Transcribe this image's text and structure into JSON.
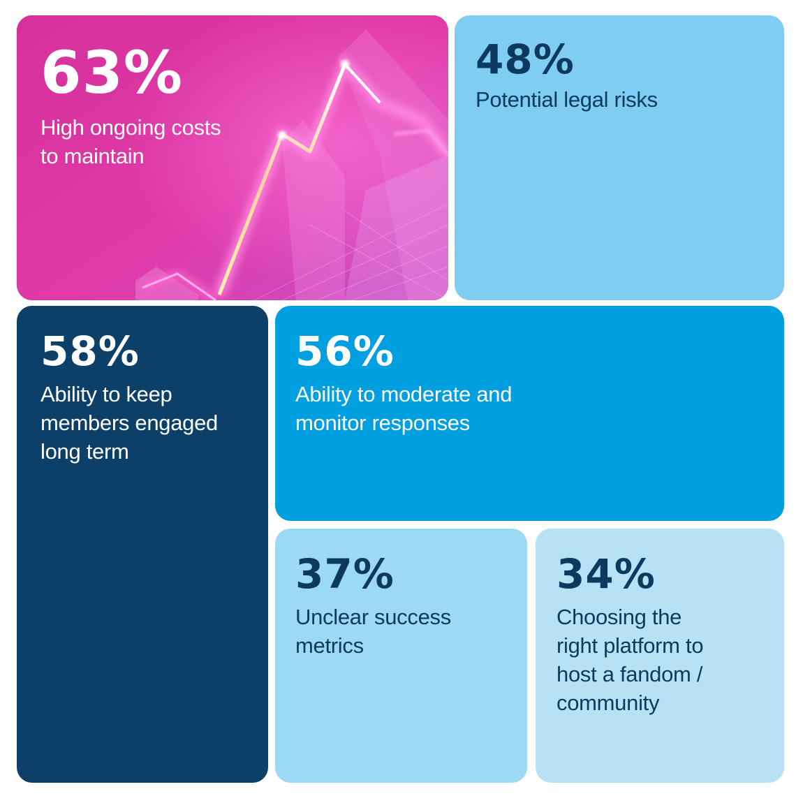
{
  "chart_data": {
    "type": "treemap",
    "title": "",
    "items": [
      {
        "value": "63%",
        "label": "High ongoing costs\nto maintain"
      },
      {
        "value": "48%",
        "label": "Potential legal risks"
      },
      {
        "value": "58%",
        "label": "Ability to keep\nmembers engaged\nlong term"
      },
      {
        "value": "56%",
        "label": "Ability to moderate and\nmonitor responses"
      },
      {
        "value": "37%",
        "label": "Unclear success\nmetrics"
      },
      {
        "value": "34%",
        "label": "Choosing the\nright platform to\nhost a fandom /\ncommunity"
      }
    ]
  },
  "colors": {
    "tile_magenta": "#d9329f",
    "tile_light_blue": "#7fcdf0",
    "tile_navy": "#0c4068",
    "tile_bright_blue": "#009fe0",
    "tile_pale_blue": "#9cd9f2",
    "tile_paler_blue": "#b7e2f6",
    "text_white": "#ffffff",
    "text_dark": "#0c3a5e"
  },
  "decor": {
    "background_image": "neon-rising-line-graphic"
  }
}
